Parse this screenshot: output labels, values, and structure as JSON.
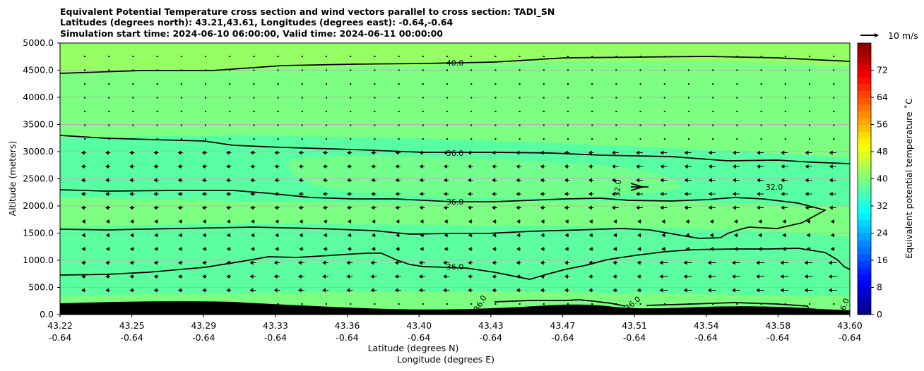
{
  "header": {
    "title_line1": "Equivalent Potential Temperature cross section and wind vectors parallel to cross section: TADI_SN",
    "title_line2": "Latitudes (degrees north): 43.21,43.61, Longitudes (degrees east): -0.64,-0.64",
    "title_line3": "Simulation start time: 2024-06-10 06:00:00, Valid time: 2024-06-11 00:00:00"
  },
  "colors": {
    "fill_main": "#7dff82",
    "fill_top": "#96ff64",
    "fill_teal": "#3affbe",
    "terrain": "#000000",
    "contour": "#000000",
    "gridline": "#b4b4b4"
  },
  "chart_data": {
    "type": "heatmap",
    "title": "Equivalent Potential Temperature cross section and wind vectors parallel to cross section: TADI_SN",
    "xlabel": "Latitude (degrees N)",
    "xlabel2": "Longitude (degrees E)",
    "ylabel": "Altitude (meters)",
    "ylim": [
      0,
      5000
    ],
    "grid": true,
    "y_ticks": [
      "0.0",
      "500.0",
      "1000.0",
      "1500.0",
      "2000.0",
      "2500.0",
      "3000.0",
      "3500.0",
      "4000.0",
      "4500.0",
      "5000.0"
    ],
    "x_ticks_lat": [
      "43.22",
      "43.25",
      "43.29",
      "43.33",
      "43.36",
      "43.40",
      "43.43",
      "43.47",
      "43.51",
      "43.54",
      "43.58",
      "43.60"
    ],
    "x_ticks_lon": [
      "-0.64",
      "-0.64",
      "-0.64",
      "-0.64",
      "-0.64",
      "-0.64",
      "-0.64",
      "-0.64",
      "-0.64",
      "-0.64",
      "-0.64",
      "-0.64"
    ],
    "colorbar": {
      "label": "Equivalent potential temperature ˚C",
      "range": [
        0,
        80
      ],
      "ticks": [
        "0",
        "8",
        "16",
        "24",
        "32",
        "40",
        "48",
        "56",
        "64",
        "72"
      ]
    },
    "contour_labels": [
      "40.0",
      "36.0",
      "36.0",
      "32.0",
      "32.0",
      "36.0",
      "36.0",
      "36.0",
      "36.0"
    ],
    "wind_reference": "10 m/s"
  }
}
